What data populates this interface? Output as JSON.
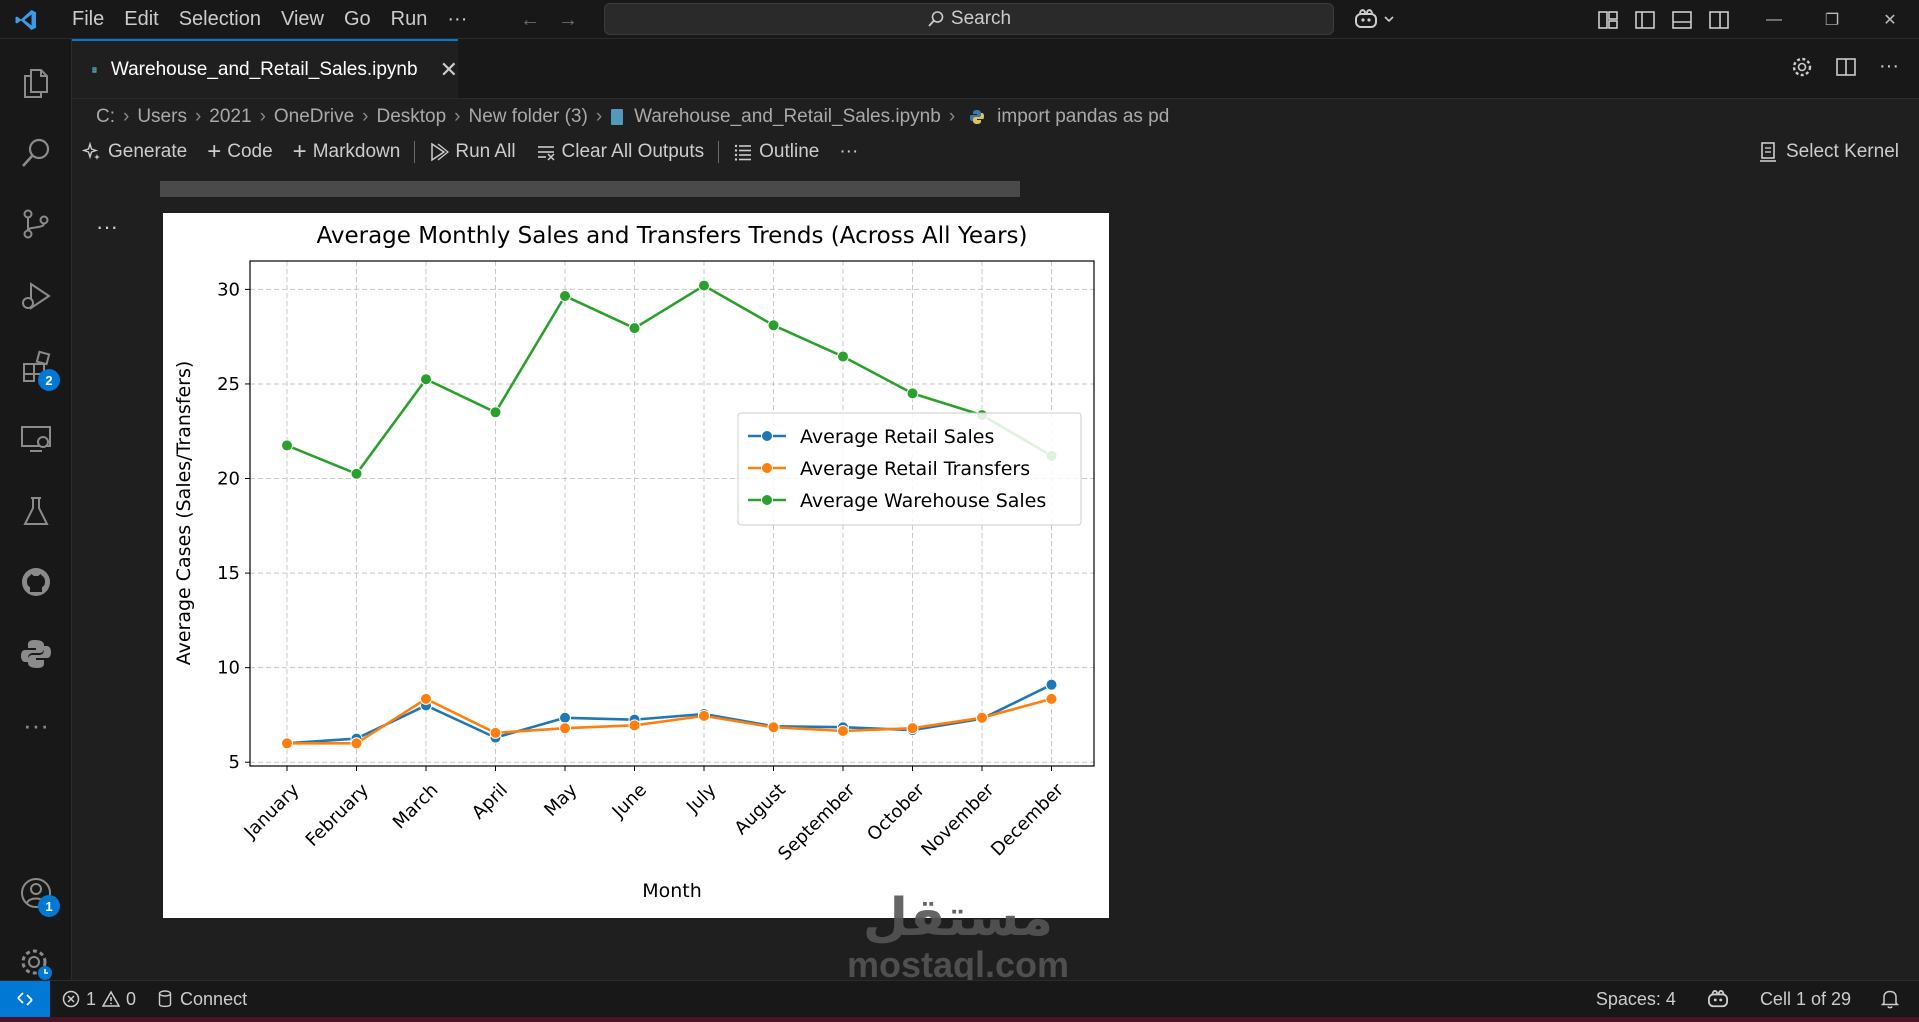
{
  "titlebar": {
    "menu": [
      "File",
      "Edit",
      "Selection",
      "View",
      "Go",
      "Run",
      "···"
    ],
    "search_placeholder": "Search"
  },
  "activity_badges": {
    "extensions": "2",
    "accounts": "1"
  },
  "editor": {
    "tab_title": "Warehouse_and_Retail_Sales.ipynb",
    "breadcrumb": [
      "C:",
      "Users",
      "2021",
      "OneDrive",
      "Desktop",
      "New folder (3)",
      "Warehouse_and_Retail_Sales.ipynb",
      "import pandas as pd"
    ],
    "toolbar": {
      "generate": "Generate",
      "code": "Code",
      "markdown": "Markdown",
      "run_all": "Run All",
      "clear_outputs": "Clear All Outputs",
      "outline": "Outline",
      "more": "···",
      "select_kernel": "Select Kernel"
    },
    "cell_more": "···"
  },
  "chart_data": {
    "type": "line",
    "title": "Average Monthly Sales and Transfers Trends (Across All Years)",
    "xlabel": "Month",
    "ylabel": "Average Cases (Sales/Transfers)",
    "ylim": [
      4.8,
      31.5
    ],
    "yticks": [
      5,
      10,
      15,
      20,
      25,
      30
    ],
    "grid": true,
    "legend_position": "center-right",
    "categories": [
      "January",
      "February",
      "March",
      "April",
      "May",
      "June",
      "July",
      "August",
      "September",
      "October",
      "November",
      "December"
    ],
    "series": [
      {
        "name": "Average Retail Sales",
        "color": "#1f77b4",
        "values": [
          6.0,
          6.25,
          8.0,
          6.3,
          7.35,
          7.25,
          7.55,
          6.9,
          6.85,
          6.7,
          7.3,
          9.1
        ]
      },
      {
        "name": "Average Retail Transfers",
        "color": "#ff7f0e",
        "values": [
          6.0,
          6.0,
          8.35,
          6.55,
          6.8,
          6.95,
          7.45,
          6.85,
          6.65,
          6.8,
          7.35,
          8.35
        ]
      },
      {
        "name": "Average Warehouse Sales",
        "color": "#2ca02c",
        "values": [
          21.75,
          20.25,
          25.25,
          23.5,
          29.65,
          27.95,
          30.2,
          28.1,
          26.45,
          24.5,
          23.35,
          21.2
        ]
      }
    ]
  },
  "statusbar": {
    "errors": "1",
    "warnings": "0",
    "connect": "Connect",
    "spaces": "Spaces: 4",
    "cell": "Cell 1 of 29"
  },
  "watermark": {
    "arabic": "مستقل",
    "latin": "mostaql.com"
  }
}
